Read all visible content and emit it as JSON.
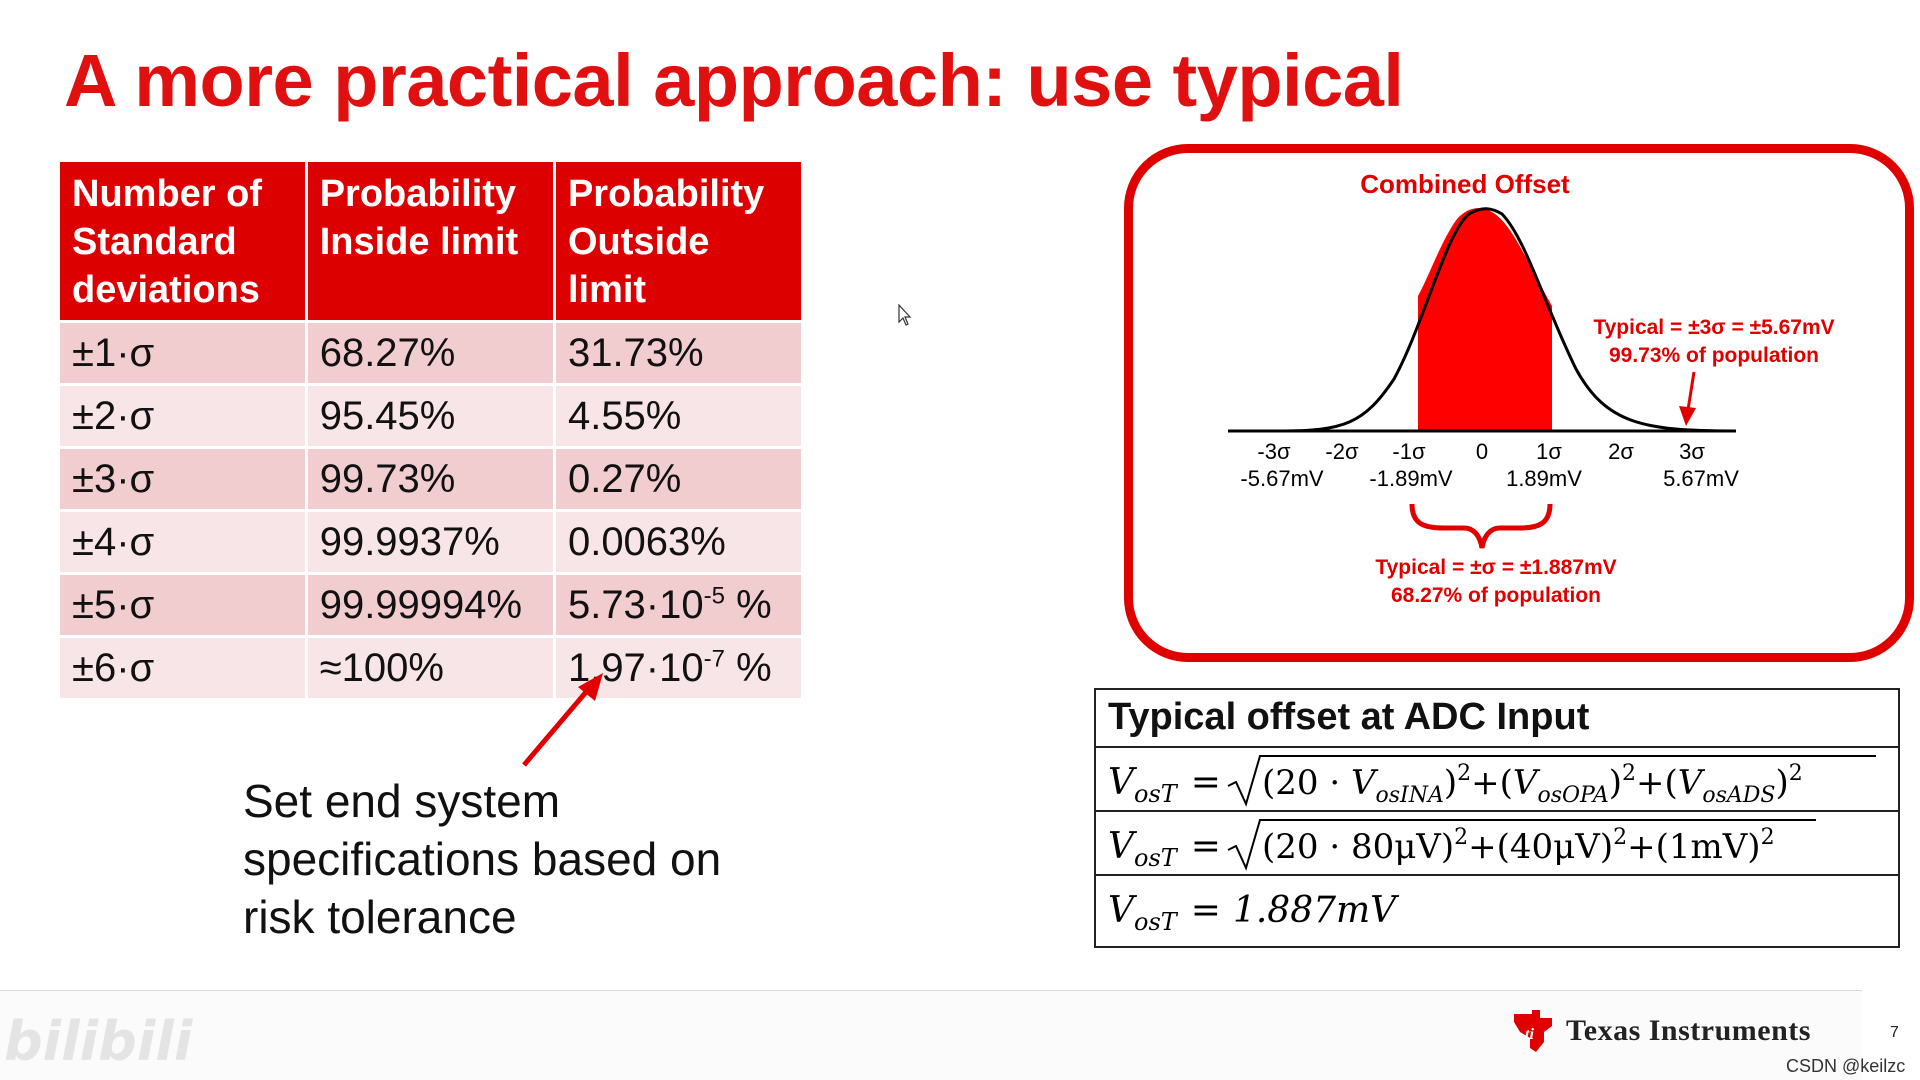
{
  "slide": {
    "title": "A more practical approach: use typical",
    "page_number": "7",
    "brand": "Texas Instruments",
    "watermark": "CSDN @keilzc",
    "video_logo": "bilibili",
    "accent_color": "#e00000"
  },
  "table": {
    "headers": [
      "Number of Standard deviations",
      "Probability Inside limit",
      "Probability Outside limit"
    ],
    "rows": [
      {
        "sigma": "±1·σ",
        "inside": "68.27%",
        "outside": "31.73%"
      },
      {
        "sigma": "±2·σ",
        "inside": "95.45%",
        "outside": "4.55%"
      },
      {
        "sigma": "±3·σ",
        "inside": "99.73%",
        "outside": "0.27%"
      },
      {
        "sigma": "±4·σ",
        "inside": "99.9937%",
        "outside": "0.0063%"
      },
      {
        "sigma": "±5·σ",
        "inside": "99.99994%",
        "outside_base": "5.73·10",
        "outside_exp": "-5",
        "outside_unit": " %"
      },
      {
        "sigma": "±6·σ",
        "inside": "≈100%",
        "outside_base": "1.97·10",
        "outside_exp": "-7",
        "outside_unit": " %"
      }
    ]
  },
  "risk_note": "Set end system specifications based on risk tolerance",
  "distribution": {
    "title": "Combined Offset",
    "sigma_ticks": [
      "-3σ",
      "-2σ",
      "-1σ",
      "0",
      "1σ",
      "2σ",
      "3σ"
    ],
    "mv_labels": [
      "-5.67mV",
      "-1.89mV",
      "1.89mV",
      "5.67mV"
    ],
    "three_sigma_line1": "Typical = ±3σ = ±5.67mV",
    "three_sigma_line2": "99.73% of population",
    "one_sigma_line1": "Typical = ±σ = ±1.887mV",
    "one_sigma_line2": "68.27% of population"
  },
  "formula": {
    "heading": "Typical offset at ADC Input",
    "lhs_main": "V",
    "lhs_sub": "osT",
    "eq": "=",
    "row1": {
      "t1_open": "(20 · ",
      "t1_var": "V",
      "t1_sub": "osINA",
      "t1_close": ")",
      "sq": "2",
      "plus": "+",
      "t2_open": "(",
      "t2_var": "V",
      "t2_sub": "osOPA",
      "t2_close": ")",
      "t3_open": "(",
      "t3_var": "V",
      "t3_sub": "osADS",
      "t3_close": ")"
    },
    "row2": {
      "t1": "(20 · 80μV)",
      "t2": "(40μV)",
      "t3": "(1mV)",
      "sq": "2",
      "plus": "+"
    },
    "row3": {
      "result": "1.887mV"
    }
  }
}
